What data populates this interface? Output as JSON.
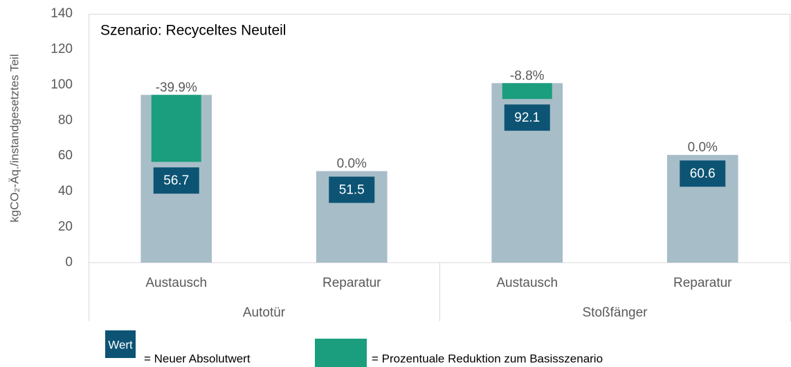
{
  "chart_data": {
    "type": "bar",
    "annotation": "Szenario: Recyceltes Neuteil",
    "y_label": "kgCO₂-Äq./instandgesetztes Teil",
    "groups": [
      "Autotür",
      "Stoßfänger"
    ],
    "categories": [
      "Austausch",
      "Reparatur",
      "Austausch",
      "Reparatur"
    ],
    "totals": [
      94.4,
      51.5,
      101.0,
      60.6
    ],
    "values": [
      56.7,
      51.5,
      92.1,
      60.6
    ],
    "changes": [
      -39.9,
      0,
      -8.8,
      0
    ],
    "change_labels": [
      "-39.9%",
      "0.0%",
      "-8.8%",
      "0.0%"
    ],
    "colors": {
      "total": "#a7bdc8",
      "value": "#0d5474",
      "change": "#1b9e7d"
    },
    "ylim": [
      0,
      140
    ],
    "yticks": [
      0,
      20,
      40,
      60,
      80,
      100,
      120,
      140
    ],
    "legend": {
      "value_box": "Wert",
      "value_text": "= Neuer Absolutwert",
      "change_text": "= Prozentuale Reduktion zum Basisszenario"
    }
  }
}
